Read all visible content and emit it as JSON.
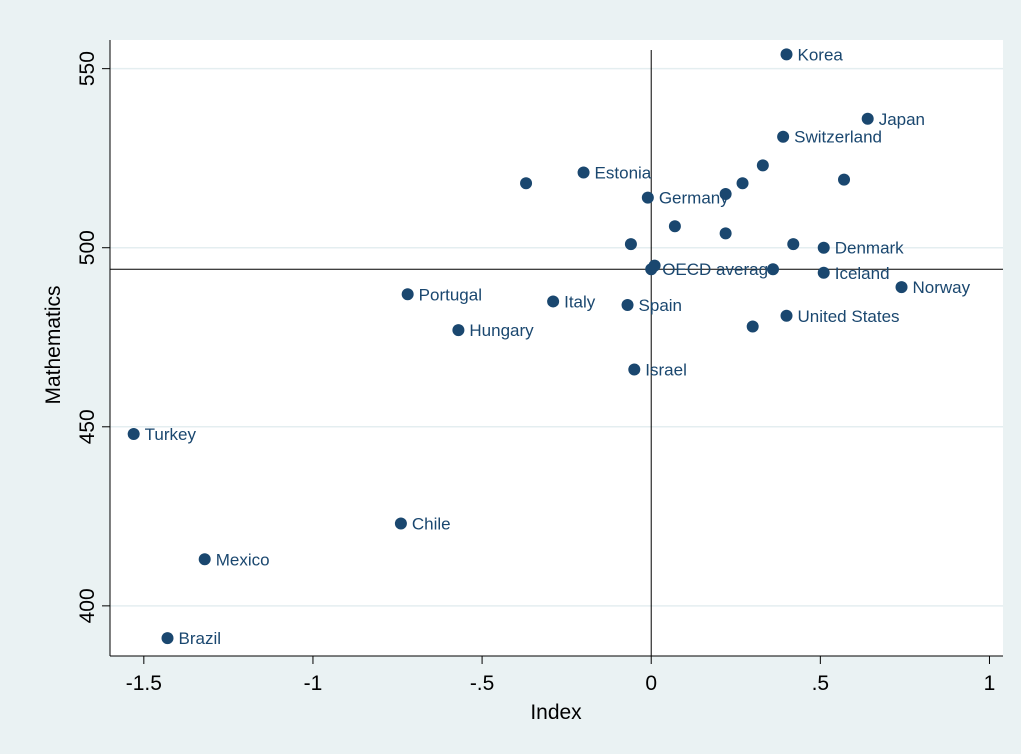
{
  "chart_data": {
    "type": "scatter",
    "title": "",
    "xlabel": "Index",
    "ylabel": "Mathematics",
    "xlim": [
      -1.6,
      1.04
    ],
    "ylim": [
      386,
      558
    ],
    "xticks": [
      {
        "value": -1.5,
        "label": "-1.5"
      },
      {
        "value": -1.0,
        "label": "-1"
      },
      {
        "value": -0.5,
        "label": "-.5"
      },
      {
        "value": 0.0,
        "label": "0"
      },
      {
        "value": 0.5,
        "label": ".5"
      },
      {
        "value": 1.0,
        "label": "1"
      }
    ],
    "yticks": [
      {
        "value": 400,
        "label": "400"
      },
      {
        "value": 450,
        "label": "450"
      },
      {
        "value": 500,
        "label": "500"
      },
      {
        "value": 550,
        "label": "550"
      }
    ],
    "grid": "horizontal",
    "reference_lines": {
      "x": 0.0,
      "y": 494
    },
    "colors": {
      "background": "#eaf2f3",
      "plot_background": "#ffffff",
      "marker": "#1a476f",
      "label": "#1a476f",
      "grid": "#e4eef0",
      "axis": "#000000"
    },
    "points": [
      {
        "x": 0.4,
        "y": 554,
        "label": "Korea"
      },
      {
        "x": 0.64,
        "y": 536,
        "label": "Japan"
      },
      {
        "x": 0.39,
        "y": 531,
        "label": "Switzerland"
      },
      {
        "x": 0.33,
        "y": 523,
        "label": ""
      },
      {
        "x": 0.27,
        "y": 518,
        "label": ""
      },
      {
        "x": 0.22,
        "y": 515,
        "label": ""
      },
      {
        "x": 0.57,
        "y": 519,
        "label": ""
      },
      {
        "x": -0.2,
        "y": 521,
        "label": "Estonia"
      },
      {
        "x": -0.37,
        "y": 518,
        "label": ""
      },
      {
        "x": -0.01,
        "y": 514,
        "label": "Germany"
      },
      {
        "x": 0.07,
        "y": 506,
        "label": ""
      },
      {
        "x": 0.22,
        "y": 504,
        "label": ""
      },
      {
        "x": -0.06,
        "y": 501,
        "label": ""
      },
      {
        "x": 0.42,
        "y": 501,
        "label": ""
      },
      {
        "x": 0.51,
        "y": 500,
        "label": "Denmark"
      },
      {
        "x": 0.0,
        "y": 494,
        "label": "OECD average"
      },
      {
        "x": 0.01,
        "y": 495,
        "label": ""
      },
      {
        "x": 0.36,
        "y": 494,
        "label": ""
      },
      {
        "x": 0.51,
        "y": 493,
        "label": "Iceland"
      },
      {
        "x": 0.74,
        "y": 489,
        "label": "Norway"
      },
      {
        "x": -0.72,
        "y": 487,
        "label": "Portugal"
      },
      {
        "x": -0.29,
        "y": 485,
        "label": "Italy"
      },
      {
        "x": -0.07,
        "y": 484,
        "label": "Spain"
      },
      {
        "x": 0.4,
        "y": 481,
        "label": "United States"
      },
      {
        "x": 0.3,
        "y": 478,
        "label": ""
      },
      {
        "x": -0.57,
        "y": 477,
        "label": "Hungary"
      },
      {
        "x": -0.05,
        "y": 466,
        "label": "Israel"
      },
      {
        "x": -1.53,
        "y": 448,
        "label": "Turkey"
      },
      {
        "x": -0.74,
        "y": 423,
        "label": "Chile"
      },
      {
        "x": -1.32,
        "y": 413,
        "label": "Mexico"
      },
      {
        "x": -1.43,
        "y": 391,
        "label": "Brazil"
      }
    ]
  }
}
